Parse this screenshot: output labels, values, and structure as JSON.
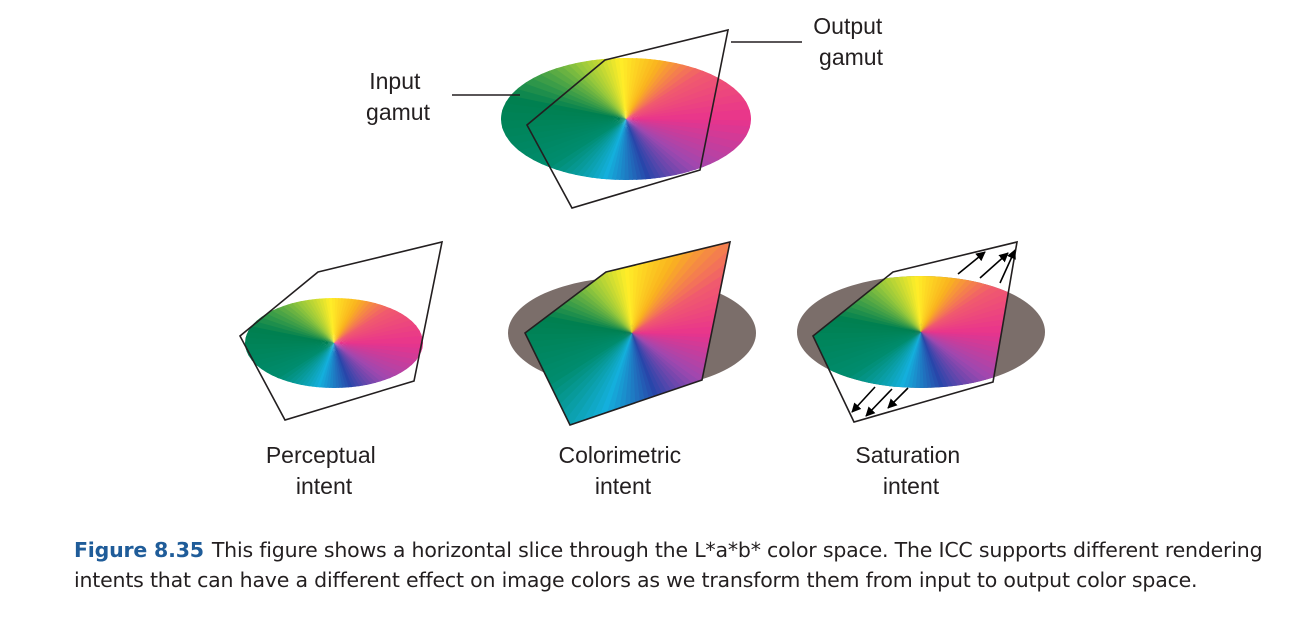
{
  "labels": {
    "input_gamut": [
      "Input",
      "gamut"
    ],
    "output_gamut": [
      "Output",
      "gamut"
    ],
    "perceptual": [
      "Perceptual",
      "intent"
    ],
    "colorimetric": [
      "Colorimetric",
      "intent"
    ],
    "saturation": [
      "Saturation",
      "intent"
    ]
  },
  "caption": {
    "figure_number": "Figure 8.35",
    "text": "This figure shows a horizontal slice through the L*a*b* color space. The ICC supports different rendering intents that can have a different effect on image colors as we transform them from input to output color space."
  },
  "colors": {
    "caption_accent": "#1f5c99",
    "out_of_gamut": "#7b6e6a",
    "outline": "#231f20"
  }
}
